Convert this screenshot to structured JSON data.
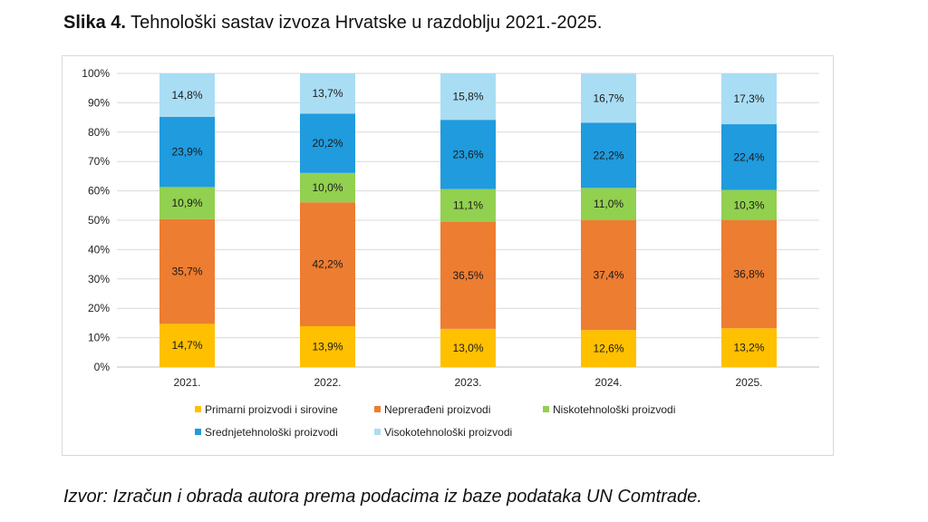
{
  "figure": {
    "label": "Slika 4.",
    "title": "Tehnološki sastav izvoza Hrvatske u razdoblju 2021.-2025.",
    "source": "Izvor: Izračun i obrada autora prema podacima iz baze podataka UN Comtrade."
  },
  "chart_data": {
    "type": "bar",
    "stacked": true,
    "title": "",
    "xlabel": "",
    "ylabel": "",
    "categories": [
      "2021.",
      "2022.",
      "2023.",
      "2024.",
      "2025."
    ],
    "ylim": [
      0,
      100
    ],
    "yticks": [
      "0%",
      "10%",
      "20%",
      "30%",
      "40%",
      "50%",
      "60%",
      "70%",
      "80%",
      "90%",
      "100%"
    ],
    "grid": true,
    "legend_position": "bottom",
    "series": [
      {
        "name": "Primarni proizvodi i sirovine",
        "color": "#FFC000",
        "values": [
          14.7,
          13.9,
          13.0,
          12.6,
          13.2
        ],
        "labels": [
          "14,7%",
          "13,9%",
          "13,0%",
          "12,6%",
          "13,2%"
        ]
      },
      {
        "name": "Neprerađeni proizvodi",
        "color": "#ED7D31",
        "values": [
          35.7,
          42.2,
          36.5,
          37.4,
          36.8
        ],
        "labels": [
          "35,7%",
          "42,2%",
          "36,5%",
          "37,4%",
          "36,8%"
        ]
      },
      {
        "name": "Niskotehnološki proizvodi",
        "color": "#92D050",
        "values": [
          10.9,
          10.0,
          11.1,
          11.0,
          10.3
        ],
        "labels": [
          "10,9%",
          "10,0%",
          "11,1%",
          "11,0%",
          "10,3%"
        ]
      },
      {
        "name": "Srednjetehnološki proizvodi",
        "color": "#1F9BDE",
        "values": [
          23.9,
          20.2,
          23.6,
          22.2,
          22.4
        ],
        "labels": [
          "23,9%",
          "20,2%",
          "23,6%",
          "22,2%",
          "22,4%"
        ]
      },
      {
        "name": "Visokotehnološki proizvodi",
        "color": "#A9DDF4",
        "values": [
          14.8,
          13.7,
          15.8,
          16.7,
          17.3
        ],
        "labels": [
          "14,8%",
          "13,7%",
          "15,8%",
          "16,7%",
          "17,3%"
        ]
      }
    ]
  }
}
